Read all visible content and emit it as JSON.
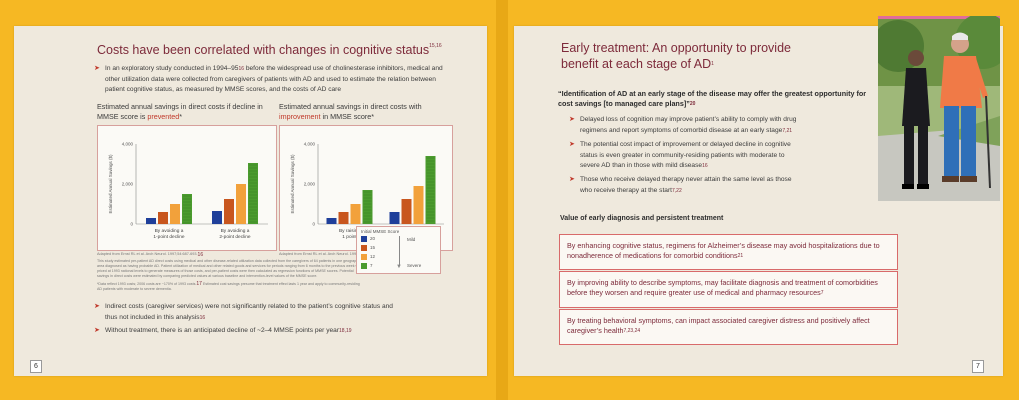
{
  "left_page": {
    "heading": "Costs have been correlated with changes in cognitive status",
    "heading_sup": "15,16",
    "bullet_1": "In an exploratory study conducted in 1994–95",
    "bullet_1_sup_a": "16",
    "bullet_1_b": " before the widespread use of cholinesterase inhibitors, medical and other utilization data were collected from caregivers of patients with AD and used to estimate the relation between patient cognitive status, as measured by MMSE scores, and the costs of AD care",
    "chart1_title_a": "Estimated annual savings in direct costs if decline in MMSE score is ",
    "chart1_title_hl": "prevented",
    "chart1_title_b": "*",
    "chart2_title_a": "Estimated annual savings in direct costs with ",
    "chart2_title_hl": "improvement",
    "chart2_title_b": " in MMSE score*",
    "chart1_caption": "Adapted from Ernst RL et al. Arch Neurol. 1997;54:687-693.",
    "chart1_caption_sup": "16",
    "chart2_caption": "Adapted from Ernst RL et al. Arch Neurol. 1997;54:687-693.",
    "chart2_caption_sup": "16",
    "fine_1": "This study estimated per-patient AD direct costs using medical and other disease-related utilization data collected from the caregivers of 64 patients in one geographical area diagnosed as having probable AD. Patient utilization of medical and other related goods and services for periods ranging from 6 months to the previous week was priced at 1993 national levels to generate measures of those costs, and per-patient costs were then calculated as regression functions of MMSE scores. Potential savings in direct costs were estimated by comparing predicted values at various baseline and intervention-level values of the MMSE score.",
    "fine_2": "*Data reflect 1993 costs; 2006 costs are ~170% of 1993 costs.",
    "fine_2_sup": "17",
    "fine_2_b": " Estimated cost savings presume that treatment effect lasts 1 year and apply to community-residing AD patients with moderate to severe dementia.",
    "legend_title": "Initial MMSE Score",
    "legend_items": [
      {
        "label": "20",
        "color": "#1f3f9a"
      },
      {
        "label": "15",
        "color": "#c8561e"
      },
      {
        "label": "12",
        "color": "#f2a13b"
      },
      {
        "label": "7",
        "color": "#4b9b2e"
      }
    ],
    "legend_mild": "Mild",
    "legend_severe": "Severe",
    "bullet_2": "Indirect costs (caregiver services) were not significantly related to the patient’s cognitive status and thus not included in this analysis",
    "bullet_2_sup": "16",
    "bullet_3": "Without treatment, there is an anticipated decline of ~2–4 MMSE points per year",
    "bullet_3_sup": "18,19",
    "page_number": "6"
  },
  "chart_data": [
    {
      "type": "bar",
      "title": "Estimated annual savings in direct costs if decline in MMSE score is prevented*",
      "ylabel": "Estimated Annual Savings ($)",
      "ylim": [
        0,
        4000
      ],
      "yticks": [
        "0",
        "2,000",
        "4,000"
      ],
      "categories": [
        "By avoiding a 1-point decline",
        "By avoiding a 2-point decline"
      ],
      "series": [
        {
          "name": "20",
          "values": [
            300,
            650
          ]
        },
        {
          "name": "15",
          "values": [
            600,
            1250
          ]
        },
        {
          "name": "12",
          "values": [
            1000,
            2000
          ]
        },
        {
          "name": "7",
          "values": [
            1500,
            3050
          ]
        }
      ],
      "legend": "external"
    },
    {
      "type": "bar",
      "title": "Estimated annual savings in direct costs with improvement in MMSE score*",
      "ylabel": "Estimated Annual Savings ($)",
      "ylim": [
        0,
        4000
      ],
      "yticks": [
        "0",
        "2,000",
        "4,000"
      ],
      "categories": [
        "By raising 1 point",
        "By raising 2 points"
      ],
      "series": [
        {
          "name": "20",
          "values": [
            300,
            600
          ]
        },
        {
          "name": "15",
          "values": [
            600,
            1250
          ]
        },
        {
          "name": "12",
          "values": [
            1000,
            1900
          ]
        },
        {
          "name": "7",
          "values": [
            1700,
            3400
          ]
        }
      ],
      "legend": "external"
    }
  ],
  "right_page": {
    "heading_1": "Early treatment: An opportunity to provide",
    "heading_2": "benefit at each stage of AD",
    "heading_sup": "1",
    "callout": "“Identification of AD at an early stage of the disease may offer the greatest opportunity for cost savings [to managed care plans]”",
    "callout_sup": "20",
    "bullets": [
      {
        "text": "Delayed loss of cognition may improve patient’s ability to comply with drug regimens and report symptoms of comorbid disease at an early stage",
        "sup": "7,21"
      },
      {
        "text": "The potential cost impact of improvement or delayed decline in cognitive status is even greater in community-residing patients with moderate to severe AD than in those with mild disease",
        "sup": "16"
      },
      {
        "text": "Those who receive delayed therapy never attain the same level as those who receive therapy at the start",
        "sup": "7,22"
      }
    ],
    "section_title": "Value of early diagnosis and persistent treatment",
    "boxes": [
      {
        "text": "By enhancing cognitive status, regimens for Alzheimer’s disease may avoid hospitalizations due to nonadherence of medications for comorbid conditions",
        "sup": "21"
      },
      {
        "text": "By improving ability to describe symptoms, may facilitate diagnosis and treatment of comorbidities before they worsen and require greater use of medical and pharmacy resources",
        "sup": "7"
      },
      {
        "text": "By treating behavioral symptoms, can impact associated caregiver distress and positively affect caregiver’s health",
        "sup": "7,23,24"
      }
    ],
    "page_number": "7"
  }
}
